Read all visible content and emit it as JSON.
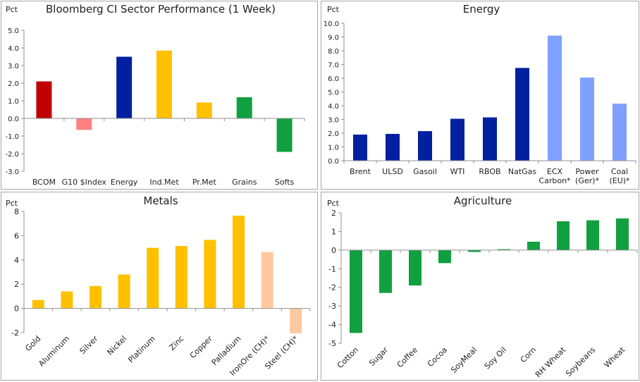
{
  "chart_data": [
    {
      "type": "bar",
      "title": "Bloomberg CI Sector Performance (1 Week)",
      "ylabel": "Pct",
      "categories": [
        "BCOM",
        "G10 $Index",
        "Energy",
        "Ind.Met",
        "Pr.Met",
        "Grains",
        "Softs"
      ],
      "values": [
        2.1,
        -0.65,
        3.5,
        3.85,
        0.9,
        1.2,
        -1.9
      ],
      "colors": [
        "#c00000",
        "#ff8080",
        "#0020a0",
        "#ffc000",
        "#ffc000",
        "#10a040",
        "#10a040"
      ],
      "ylim": [
        -3,
        5
      ],
      "yticks": [
        "-3.0",
        "-2.0",
        "-1.0",
        "0.0",
        "1.0",
        "2.0",
        "3.0",
        "4.0",
        "5.0"
      ],
      "grid": false
    },
    {
      "type": "bar",
      "title": "Energy",
      "ylabel": "Pct",
      "categories": [
        "Brent",
        "ULSD",
        "Gasoil",
        "WTI",
        "RBOB",
        "NatGas",
        "ECX\nCarbon*",
        "Power\n(Ger)*",
        "Coal\n(EU)*"
      ],
      "values": [
        1.9,
        1.95,
        2.15,
        3.05,
        3.15,
        6.75,
        9.1,
        6.05,
        4.15
      ],
      "colors": [
        "#0020a0",
        "#0020a0",
        "#0020a0",
        "#0020a0",
        "#0020a0",
        "#0020a0",
        "#7fa0ff",
        "#7fa0ff",
        "#7fa0ff"
      ],
      "ylim": [
        0,
        10
      ],
      "yticks": [
        "0.0",
        "1.0",
        "2.0",
        "3.0",
        "4.0",
        "5.0",
        "6.0",
        "7.0",
        "8.0",
        "9.0",
        "10.0"
      ],
      "grid": false
    },
    {
      "type": "bar",
      "title": "Metals",
      "ylabel": "Pct",
      "categories": [
        "Gold",
        "Aluminum",
        "Silver",
        "Nickel",
        "Platinum",
        "Zinc",
        "Copper",
        "Palladium",
        "IronOre (CH)*",
        "Steel (CH)*"
      ],
      "values": [
        0.7,
        1.4,
        1.85,
        2.8,
        5.0,
        5.15,
        5.65,
        7.65,
        4.65,
        -2.05
      ],
      "colors": [
        "#ffc000",
        "#ffc000",
        "#ffc000",
        "#ffc000",
        "#ffc000",
        "#ffc000",
        "#ffc000",
        "#ffc000",
        "#ffc8a0",
        "#ffc8a0"
      ],
      "ylim": [
        -2,
        8
      ],
      "yticks": [
        "-2",
        "0",
        "2",
        "4",
        "6",
        "8"
      ],
      "grid": false
    },
    {
      "type": "bar",
      "title": "Agriculture",
      "ylabel": "Pct",
      "categories": [
        "Cotton",
        "Sugar",
        "Coffee",
        "Cocoa",
        "SoyMeal",
        "Soy Oil",
        "Corn",
        "RH Wheat",
        "Soybeans",
        "Wheat"
      ],
      "values": [
        -4.45,
        -2.3,
        -1.9,
        -0.7,
        -0.1,
        0.05,
        0.45,
        1.55,
        1.6,
        1.7
      ],
      "colors": [
        "#10a040",
        "#10a040",
        "#10a040",
        "#10a040",
        "#10a040",
        "#10a040",
        "#10a040",
        "#10a040",
        "#10a040",
        "#10a040"
      ],
      "ylim": [
        -5,
        2
      ],
      "yticks": [
        "-5",
        "-4",
        "-3",
        "-2",
        "-1",
        "0",
        "1",
        "2"
      ],
      "grid": false
    }
  ]
}
